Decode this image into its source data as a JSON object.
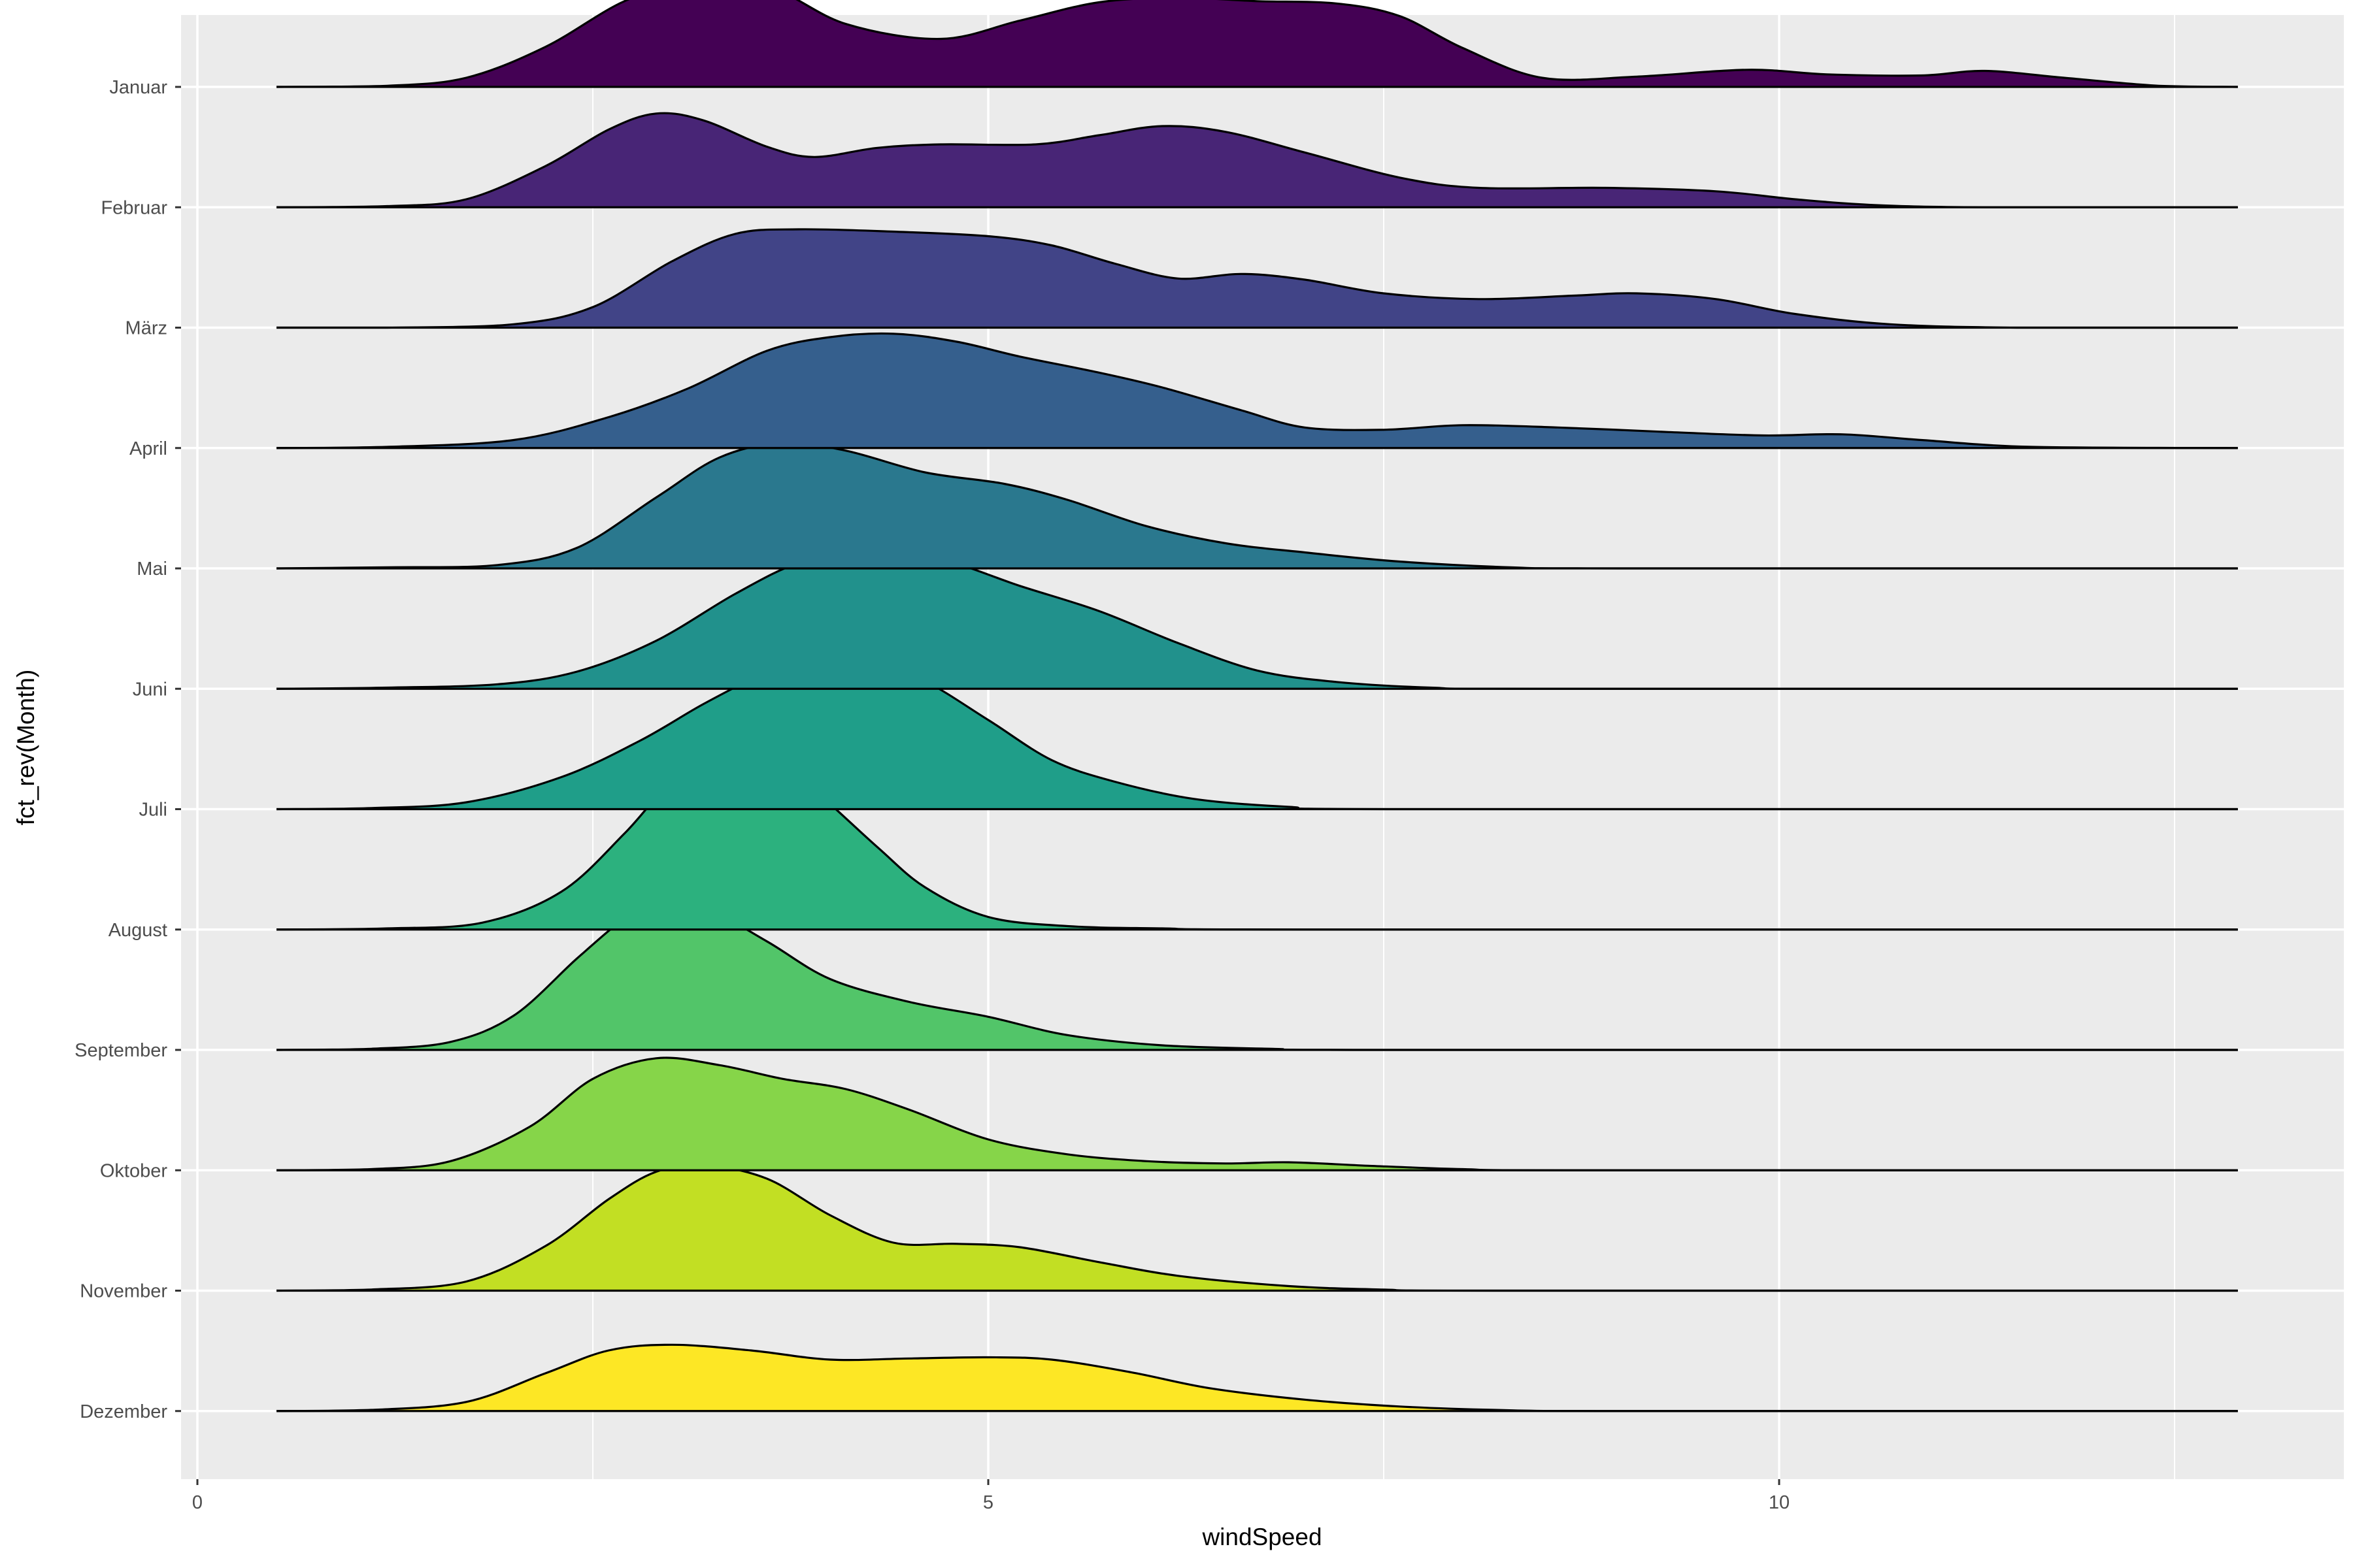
{
  "chart_data": {
    "type": "ridgeline",
    "xlabel": "windSpeed",
    "ylabel": "fct_rev(Month)",
    "x_range": [
      0.5,
      12.9
    ],
    "xlim": [
      -0.25,
      13.55
    ],
    "x_ticks": [
      0,
      5,
      10
    ],
    "x_tick_labels": [
      "0",
      "5",
      "10"
    ],
    "panel_background": "#ebebeb",
    "grid": true,
    "grid_color": "#ffffff",
    "outline_color": "#000000",
    "categories": [
      "Januar",
      "Februar",
      "März",
      "April",
      "Mai",
      "Juni",
      "Juli",
      "August",
      "September",
      "Oktober",
      "November",
      "Dezember"
    ],
    "series": [
      {
        "name": "Januar",
        "color": "#440154",
        "density": [
          [
            0.5,
            0
          ],
          [
            1.2,
            0.01
          ],
          [
            1.7,
            0.08
          ],
          [
            2.2,
            0.35
          ],
          [
            2.7,
            0.75
          ],
          [
            3.1,
            0.9
          ],
          [
            3.6,
            0.88
          ],
          [
            4.1,
            0.55
          ],
          [
            4.7,
            0.42
          ],
          [
            5.2,
            0.58
          ],
          [
            5.7,
            0.74
          ],
          [
            6.2,
            0.78
          ],
          [
            6.7,
            0.75
          ],
          [
            7.2,
            0.73
          ],
          [
            7.6,
            0.62
          ],
          [
            8.0,
            0.34
          ],
          [
            8.5,
            0.08
          ],
          [
            9.1,
            0.09
          ],
          [
            9.8,
            0.15
          ],
          [
            10.3,
            0.11
          ],
          [
            10.9,
            0.1
          ],
          [
            11.3,
            0.14
          ],
          [
            11.8,
            0.08
          ],
          [
            12.4,
            0.01
          ],
          [
            12.9,
            0
          ]
        ]
      },
      {
        "name": "Februar",
        "color": "#482576",
        "density": [
          [
            0.5,
            0
          ],
          [
            1.2,
            0.01
          ],
          [
            1.7,
            0.07
          ],
          [
            2.2,
            0.36
          ],
          [
            2.6,
            0.68
          ],
          [
            2.9,
            0.82
          ],
          [
            3.2,
            0.76
          ],
          [
            3.6,
            0.53
          ],
          [
            3.9,
            0.44
          ],
          [
            4.3,
            0.52
          ],
          [
            4.7,
            0.55
          ],
          [
            5.3,
            0.55
          ],
          [
            5.7,
            0.63
          ],
          [
            6.1,
            0.71
          ],
          [
            6.5,
            0.66
          ],
          [
            7.0,
            0.48
          ],
          [
            7.6,
            0.26
          ],
          [
            8.1,
            0.17
          ],
          [
            8.9,
            0.17
          ],
          [
            9.6,
            0.14
          ],
          [
            10.1,
            0.07
          ],
          [
            10.6,
            0.02
          ],
          [
            11.3,
            0
          ],
          [
            12.9,
            0
          ]
        ]
      },
      {
        "name": "März",
        "color": "#414487",
        "density": [
          [
            0.5,
            0
          ],
          [
            1.2,
            0
          ],
          [
            2.0,
            0.03
          ],
          [
            2.5,
            0.18
          ],
          [
            3.0,
            0.58
          ],
          [
            3.4,
            0.82
          ],
          [
            3.8,
            0.86
          ],
          [
            4.4,
            0.84
          ],
          [
            5.0,
            0.8
          ],
          [
            5.4,
            0.72
          ],
          [
            5.8,
            0.56
          ],
          [
            6.2,
            0.43
          ],
          [
            6.6,
            0.47
          ],
          [
            7.0,
            0.42
          ],
          [
            7.5,
            0.3
          ],
          [
            8.1,
            0.25
          ],
          [
            8.7,
            0.28
          ],
          [
            9.1,
            0.3
          ],
          [
            9.6,
            0.25
          ],
          [
            10.1,
            0.12
          ],
          [
            10.7,
            0.03
          ],
          [
            11.5,
            0
          ],
          [
            12.9,
            0
          ]
        ]
      },
      {
        "name": "April",
        "color": "#355f8d",
        "density": [
          [
            0.5,
            0
          ],
          [
            1.2,
            0.01
          ],
          [
            2.0,
            0.07
          ],
          [
            2.6,
            0.27
          ],
          [
            3.1,
            0.52
          ],
          [
            3.6,
            0.85
          ],
          [
            4.0,
            0.97
          ],
          [
            4.4,
            1.0
          ],
          [
            4.8,
            0.93
          ],
          [
            5.2,
            0.8
          ],
          [
            5.7,
            0.66
          ],
          [
            6.1,
            0.53
          ],
          [
            6.6,
            0.33
          ],
          [
            7.0,
            0.18
          ],
          [
            7.5,
            0.16
          ],
          [
            8.0,
            0.2
          ],
          [
            8.6,
            0.18
          ],
          [
            9.3,
            0.14
          ],
          [
            9.9,
            0.11
          ],
          [
            10.4,
            0.12
          ],
          [
            10.9,
            0.07
          ],
          [
            11.6,
            0.01
          ],
          [
            12.9,
            0
          ]
        ]
      },
      {
        "name": "Mai",
        "color": "#2a788e",
        "density": [
          [
            0.5,
            0
          ],
          [
            1.2,
            0.01
          ],
          [
            1.9,
            0.03
          ],
          [
            2.4,
            0.18
          ],
          [
            2.9,
            0.62
          ],
          [
            3.3,
            0.97
          ],
          [
            3.7,
            1.1
          ],
          [
            4.1,
            1.03
          ],
          [
            4.6,
            0.84
          ],
          [
            5.1,
            0.74
          ],
          [
            5.5,
            0.6
          ],
          [
            6.0,
            0.37
          ],
          [
            6.5,
            0.22
          ],
          [
            7.0,
            0.14
          ],
          [
            7.6,
            0.06
          ],
          [
            8.3,
            0.01
          ],
          [
            9.0,
            0
          ],
          [
            12.9,
            0
          ]
        ]
      },
      {
        "name": "Juni",
        "color": "#21918c",
        "density": [
          [
            0.5,
            0
          ],
          [
            1.2,
            0.01
          ],
          [
            1.9,
            0.04
          ],
          [
            2.4,
            0.15
          ],
          [
            2.9,
            0.42
          ],
          [
            3.4,
            0.83
          ],
          [
            3.8,
            1.1
          ],
          [
            4.2,
            1.2
          ],
          [
            4.7,
            1.13
          ],
          [
            5.2,
            0.9
          ],
          [
            5.7,
            0.68
          ],
          [
            6.2,
            0.4
          ],
          [
            6.7,
            0.16
          ],
          [
            7.2,
            0.06
          ],
          [
            7.8,
            0.01
          ],
          [
            8.5,
            0
          ],
          [
            12.9,
            0
          ]
        ]
      },
      {
        "name": "Juli",
        "color": "#1f9e89",
        "density": [
          [
            0.5,
            0
          ],
          [
            1.1,
            0.01
          ],
          [
            1.7,
            0.06
          ],
          [
            2.3,
            0.28
          ],
          [
            2.8,
            0.6
          ],
          [
            3.2,
            0.92
          ],
          [
            3.6,
            1.2
          ],
          [
            3.9,
            1.35
          ],
          [
            4.2,
            1.34
          ],
          [
            4.6,
            1.12
          ],
          [
            5.0,
            0.78
          ],
          [
            5.4,
            0.43
          ],
          [
            5.8,
            0.24
          ],
          [
            6.3,
            0.09
          ],
          [
            6.9,
            0.02
          ],
          [
            7.6,
            0
          ],
          [
            12.9,
            0
          ]
        ]
      },
      {
        "name": "August",
        "color": "#2cb17e",
        "density": [
          [
            0.5,
            0
          ],
          [
            1.2,
            0.01
          ],
          [
            1.8,
            0.06
          ],
          [
            2.3,
            0.33
          ],
          [
            2.7,
            0.84
          ],
          [
            3.0,
            1.3
          ],
          [
            3.3,
            1.57
          ],
          [
            3.6,
            1.53
          ],
          [
            3.9,
            1.22
          ],
          [
            4.3,
            0.72
          ],
          [
            4.6,
            0.37
          ],
          [
            5.0,
            0.11
          ],
          [
            5.5,
            0.03
          ],
          [
            6.1,
            0.01
          ],
          [
            7.0,
            0
          ],
          [
            12.9,
            0
          ]
        ]
      },
      {
        "name": "September",
        "color": "#52c569",
        "density": [
          [
            0.5,
            0
          ],
          [
            1.1,
            0.01
          ],
          [
            1.6,
            0.07
          ],
          [
            2.0,
            0.3
          ],
          [
            2.4,
            0.8
          ],
          [
            2.7,
            1.15
          ],
          [
            2.9,
            1.3
          ],
          [
            3.2,
            1.25
          ],
          [
            3.6,
            0.95
          ],
          [
            4.0,
            0.62
          ],
          [
            4.5,
            0.42
          ],
          [
            5.0,
            0.29
          ],
          [
            5.5,
            0.13
          ],
          [
            6.1,
            0.04
          ],
          [
            6.8,
            0.01
          ],
          [
            7.5,
            0
          ],
          [
            12.9,
            0
          ]
        ]
      },
      {
        "name": "Oktober",
        "color": "#86d549",
        "density": [
          [
            0.5,
            0
          ],
          [
            1.1,
            0.01
          ],
          [
            1.6,
            0.08
          ],
          [
            2.1,
            0.38
          ],
          [
            2.5,
            0.8
          ],
          [
            2.9,
            0.98
          ],
          [
            3.3,
            0.92
          ],
          [
            3.7,
            0.8
          ],
          [
            4.1,
            0.71
          ],
          [
            4.5,
            0.53
          ],
          [
            5.0,
            0.27
          ],
          [
            5.5,
            0.14
          ],
          [
            6.0,
            0.08
          ],
          [
            6.5,
            0.06
          ],
          [
            6.9,
            0.07
          ],
          [
            7.4,
            0.04
          ],
          [
            8.0,
            0.01
          ],
          [
            8.7,
            0
          ],
          [
            12.9,
            0
          ]
        ]
      },
      {
        "name": "November",
        "color": "#c2df23",
        "density": [
          [
            0.5,
            0
          ],
          [
            1.1,
            0.01
          ],
          [
            1.7,
            0.08
          ],
          [
            2.2,
            0.39
          ],
          [
            2.6,
            0.8
          ],
          [
            2.9,
            1.04
          ],
          [
            3.2,
            1.1
          ],
          [
            3.6,
            0.98
          ],
          [
            4.0,
            0.66
          ],
          [
            4.4,
            0.42
          ],
          [
            4.8,
            0.41
          ],
          [
            5.2,
            0.38
          ],
          [
            5.7,
            0.25
          ],
          [
            6.2,
            0.13
          ],
          [
            6.9,
            0.04
          ],
          [
            7.5,
            0.01
          ],
          [
            8.2,
            0
          ],
          [
            12.9,
            0
          ]
        ]
      },
      {
        "name": "Dezember",
        "color": "#fde725",
        "density": [
          [
            0.5,
            0
          ],
          [
            1.1,
            0.01
          ],
          [
            1.7,
            0.08
          ],
          [
            2.2,
            0.33
          ],
          [
            2.6,
            0.53
          ],
          [
            3.0,
            0.58
          ],
          [
            3.5,
            0.53
          ],
          [
            4.0,
            0.45
          ],
          [
            4.5,
            0.46
          ],
          [
            5.0,
            0.47
          ],
          [
            5.4,
            0.45
          ],
          [
            5.9,
            0.34
          ],
          [
            6.4,
            0.2
          ],
          [
            7.0,
            0.1
          ],
          [
            7.6,
            0.04
          ],
          [
            8.2,
            0.01
          ],
          [
            9.0,
            0
          ],
          [
            12.9,
            0
          ]
        ]
      }
    ]
  }
}
